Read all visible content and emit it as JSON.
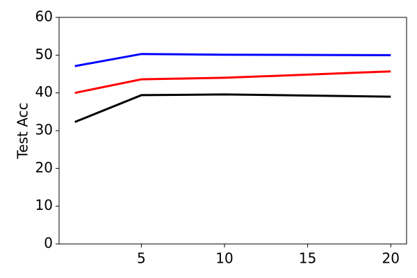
{
  "chart_data": {
    "type": "line",
    "y_label": "Test Acc",
    "x": [
      1,
      5,
      10,
      20
    ],
    "series": [
      {
        "color": "#0000ff",
        "values": [
          47.1,
          50.3,
          50.1,
          50.0
        ]
      },
      {
        "color": "#ff0000",
        "values": [
          40.0,
          43.6,
          44.0,
          45.7
        ]
      },
      {
        "color": "#000000",
        "values": [
          32.3,
          39.4,
          39.6,
          39.0
        ]
      }
    ],
    "xlim": [
      0.05,
      20.95
    ],
    "xticks": [
      5,
      10,
      15,
      20
    ],
    "ylim": [
      0,
      60
    ],
    "yticks": [
      0,
      10,
      20,
      30,
      40,
      50,
      60
    ]
  }
}
